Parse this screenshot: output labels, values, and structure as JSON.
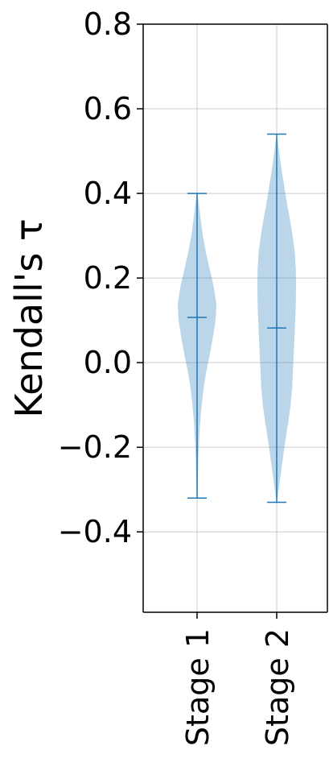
{
  "chart_data": {
    "type": "violin",
    "ylabel": "Kendall's τ",
    "categories": [
      "Stage 1",
      "Stage 2"
    ],
    "ylim": [
      -0.59,
      0.8
    ],
    "yticks": [
      "0.8",
      "0.6",
      "0.4",
      "0.2",
      "0.0",
      "−0.2",
      "−0.4"
    ],
    "ytick_values": [
      0.8,
      0.6,
      0.4,
      0.2,
      0.0,
      -0.2,
      -0.4
    ],
    "grid": true,
    "colors": {
      "fill": "#1f77b4",
      "fill_opacity": 0.3,
      "line": "#1f77b4",
      "grid": "#cccccc",
      "axes": "#000000"
    },
    "violins": [
      {
        "name": "Stage 1",
        "min": -0.32,
        "max": 0.4,
        "mean": 0.107,
        "density": [
          [
            0.4,
            0.0
          ],
          [
            0.38,
            0.08
          ],
          [
            0.34,
            0.18
          ],
          [
            0.3,
            0.3
          ],
          [
            0.26,
            0.46
          ],
          [
            0.22,
            0.66
          ],
          [
            0.18,
            0.86
          ],
          [
            0.14,
            1.0
          ],
          [
            0.1,
            0.96
          ],
          [
            0.06,
            0.82
          ],
          [
            0.02,
            0.66
          ],
          [
            -0.02,
            0.48
          ],
          [
            -0.06,
            0.34
          ],
          [
            -0.1,
            0.24
          ],
          [
            -0.14,
            0.16
          ],
          [
            -0.18,
            0.11
          ],
          [
            -0.22,
            0.07
          ],
          [
            -0.26,
            0.05
          ],
          [
            -0.3,
            0.03
          ],
          [
            -0.32,
            0.0
          ]
        ]
      },
      {
        "name": "Stage 2",
        "min": -0.33,
        "max": 0.54,
        "mean": 0.082,
        "density": [
          [
            0.54,
            0.0
          ],
          [
            0.5,
            0.12
          ],
          [
            0.46,
            0.24
          ],
          [
            0.42,
            0.38
          ],
          [
            0.38,
            0.52
          ],
          [
            0.34,
            0.68
          ],
          [
            0.3,
            0.82
          ],
          [
            0.26,
            0.94
          ],
          [
            0.22,
            0.99
          ],
          [
            0.18,
            1.0
          ],
          [
            0.14,
            0.99
          ],
          [
            0.1,
            0.96
          ],
          [
            0.06,
            0.92
          ],
          [
            0.02,
            0.88
          ],
          [
            -0.02,
            0.84
          ],
          [
            -0.06,
            0.8
          ],
          [
            -0.1,
            0.72
          ],
          [
            -0.14,
            0.6
          ],
          [
            -0.18,
            0.46
          ],
          [
            -0.22,
            0.34
          ],
          [
            -0.26,
            0.22
          ],
          [
            -0.3,
            0.1
          ],
          [
            -0.33,
            0.0
          ]
        ]
      }
    ]
  }
}
